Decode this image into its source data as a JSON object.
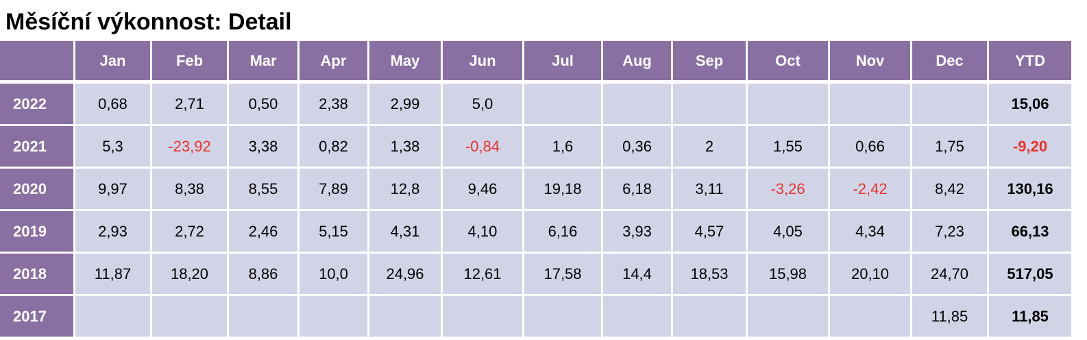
{
  "title": "Měsíční výkonnost: Detail",
  "table": {
    "columns": [
      "Jan",
      "Feb",
      "Mar",
      "Apr",
      "May",
      "Jun",
      "Jul",
      "Aug",
      "Sep",
      "Oct",
      "Nov",
      "Dec",
      "YTD"
    ],
    "rows": [
      {
        "year": "2022",
        "cells": [
          "0,68",
          "2,71",
          "0,50",
          "2,38",
          "2,99",
          "5,0",
          null,
          null,
          null,
          null,
          null,
          null,
          "15,06"
        ]
      },
      {
        "year": "2021",
        "cells": [
          "5,3",
          "-23,92",
          "3,38",
          "0,82",
          "1,38",
          "-0,84",
          "1,6",
          "0,36",
          "2",
          "1,55",
          "0,66",
          "1,75",
          "-9,20"
        ]
      },
      {
        "year": "2020",
        "cells": [
          "9,97",
          "8,38",
          "8,55",
          "7,89",
          "12,8",
          "9,46",
          "19,18",
          "6,18",
          "3,11",
          "-3,26",
          "-2,42",
          "8,42",
          "130,16"
        ]
      },
      {
        "year": "2019",
        "cells": [
          "2,93",
          "2,72",
          "2,46",
          "5,15",
          "4,31",
          "4,10",
          "6,16",
          "3,93",
          "4,57",
          "4,05",
          "4,34",
          "7,23",
          "66,13"
        ]
      },
      {
        "year": "2018",
        "cells": [
          "11,87",
          "18,20",
          "8,86",
          "10,0",
          "24,96",
          "12,61",
          "17,58",
          "14,4",
          "18,53",
          "15,98",
          "20,10",
          "24,70",
          "517,05"
        ]
      },
      {
        "year": "2017",
        "cells": [
          null,
          null,
          null,
          null,
          null,
          null,
          null,
          null,
          null,
          null,
          null,
          "11,85",
          "11,85"
        ]
      }
    ]
  }
}
